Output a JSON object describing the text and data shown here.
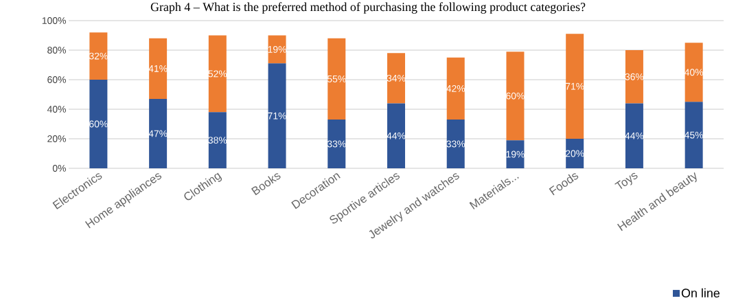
{
  "chart_data": {
    "type": "bar",
    "stacked": true,
    "title": "Graph 4 – What is the preferred method of purchasing the following product categories?",
    "categories": [
      "Electronics",
      "Home appliances",
      "Clothing",
      "Books",
      "Decoration",
      "Sportive articles",
      "Jewelry and watches",
      "Materials...",
      "Foods",
      "Toys",
      "Health and beauty"
    ],
    "series": [
      {
        "name": "On line",
        "color": "#2f5597",
        "values": [
          60,
          47,
          38,
          71,
          33,
          44,
          33,
          19,
          20,
          44,
          45
        ],
        "value_labels": [
          "60%",
          "47%",
          "38%",
          "71%",
          "33%",
          "44%",
          "33%",
          "19%",
          "20%",
          "44%",
          "45%"
        ]
      },
      {
        "color": "#ed7d31",
        "values": [
          32,
          41,
          52,
          19,
          55,
          34,
          42,
          60,
          71,
          36,
          40
        ],
        "value_labels": [
          "32%",
          "41%",
          "52%",
          "19%",
          "55%",
          "34%",
          "42%",
          "60%",
          "71%",
          "36%",
          "40%"
        ]
      }
    ],
    "ylim": [
      0,
      100
    ],
    "yticks": [
      {
        "value": 0,
        "label": "0%"
      },
      {
        "value": 20,
        "label": "20%"
      },
      {
        "value": 40,
        "label": "40%"
      },
      {
        "value": 60,
        "label": "60%"
      },
      {
        "value": 80,
        "label": "80%"
      },
      {
        "value": 100,
        "label": "100%"
      }
    ],
    "grid": "y",
    "legend": "bottom right"
  }
}
